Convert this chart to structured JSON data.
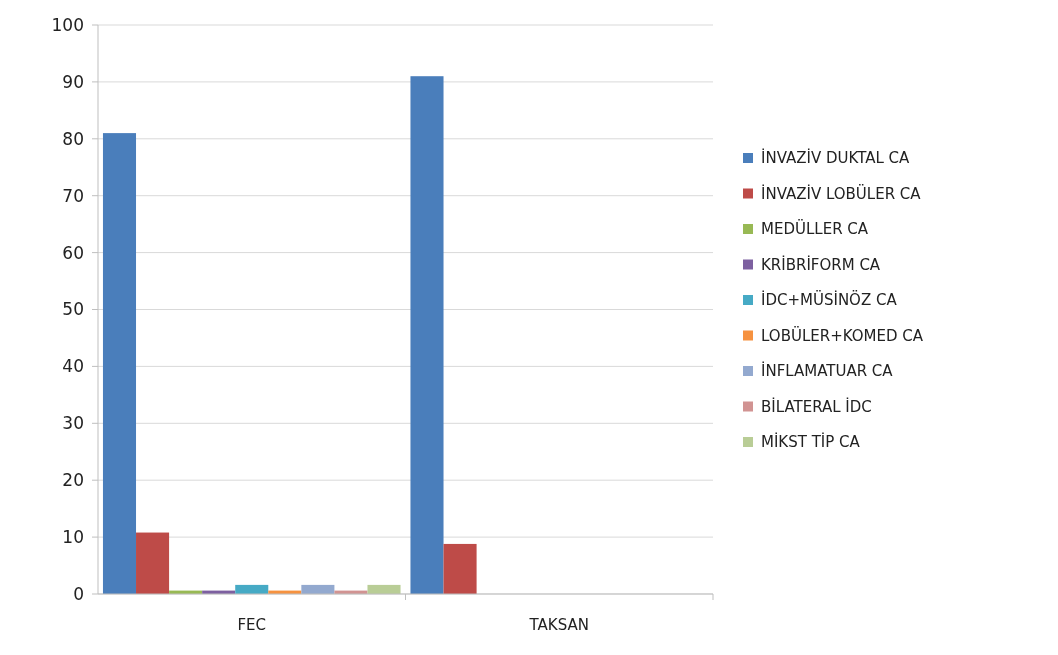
{
  "chart_data": {
    "type": "bar",
    "categories": [
      "FEC",
      "TAKSAN"
    ],
    "ylim": [
      0,
      100
    ],
    "yticks": [
      0,
      10,
      20,
      30,
      40,
      50,
      60,
      70,
      80,
      90,
      100
    ],
    "grid": "y",
    "legend": "right",
    "series": [
      {
        "name": "İNVAZİV DUKTAL CA",
        "color": "#4a7ebb",
        "values": [
          81,
          91
        ]
      },
      {
        "name": "İNVAZİV LOBÜLER CA",
        "color": "#be4b48",
        "values": [
          10.8,
          8.8
        ]
      },
      {
        "name": "MEDÜLLER CA",
        "color": "#98b954",
        "values": [
          0.6,
          0
        ]
      },
      {
        "name": "KRİBRİFORM CA",
        "color": "#7d60a0",
        "values": [
          0.6,
          0
        ]
      },
      {
        "name": "İDC+MÜSİNÖZ CA",
        "color": "#46aac5",
        "values": [
          1.6,
          0
        ]
      },
      {
        "name": "LOBÜLER+KOMED CA",
        "color": "#f69240",
        "values": [
          0.6,
          0
        ]
      },
      {
        "name": "İNFLAMATUAR CA",
        "color": "#93a9cf",
        "values": [
          1.6,
          0
        ]
      },
      {
        "name": "BİLATERAL İDC",
        "color": "#d19392",
        "values": [
          0.6,
          0
        ]
      },
      {
        "name": "MİKST TİP CA",
        "color": "#b9cd96",
        "values": [
          1.6,
          0
        ]
      }
    ]
  }
}
